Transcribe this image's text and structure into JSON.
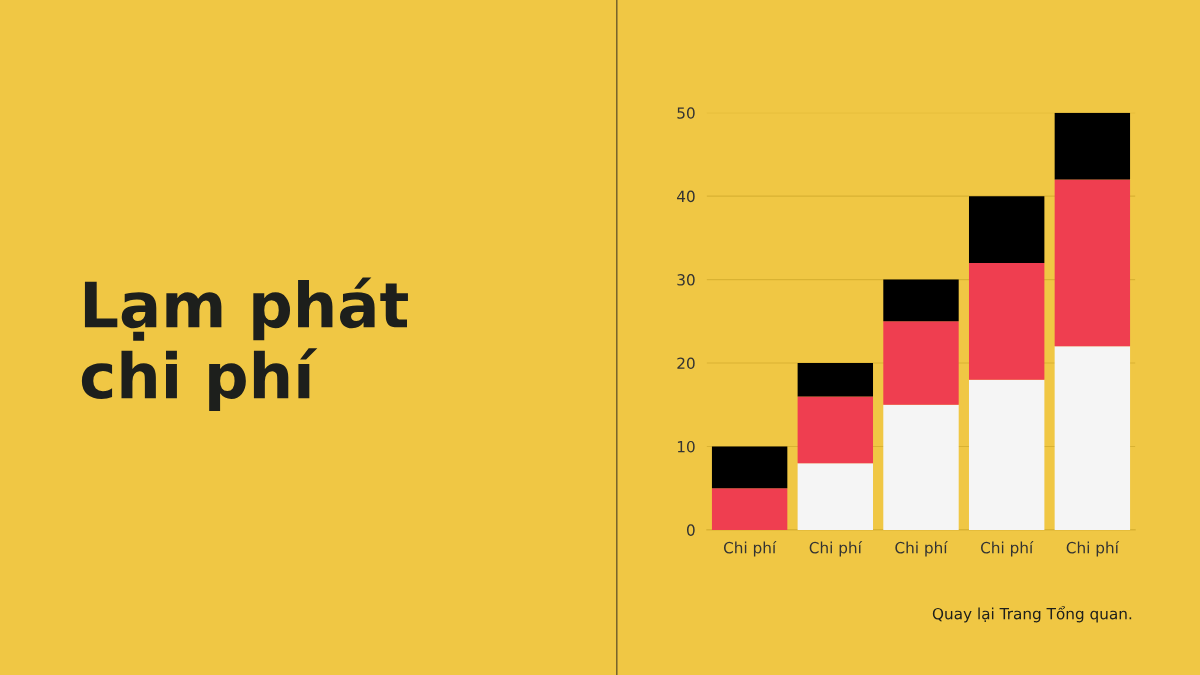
{
  "chart_data": {
    "type": "bar",
    "title": "Lạm phát\nchi phí",
    "categories": [
      "Chi phí",
      "Chi phí",
      "Chi phí",
      "Chi phí",
      "Chi phí"
    ],
    "stacked": true,
    "series": [
      {
        "color": "#f5f5f5",
        "values": [
          0,
          8,
          15,
          18,
          22
        ]
      },
      {
        "color": "#ef3e50",
        "values": [
          5,
          8,
          10,
          14,
          20
        ]
      },
      {
        "color": "#000000",
        "values": [
          5,
          4,
          5,
          8,
          8
        ]
      }
    ],
    "ylim": [
      0,
      50
    ],
    "yticks": [
      0,
      10,
      20,
      30,
      40,
      50
    ],
    "grid": "y",
    "annotations": [
      "Quay lại Trang Tổng quan."
    ]
  }
}
